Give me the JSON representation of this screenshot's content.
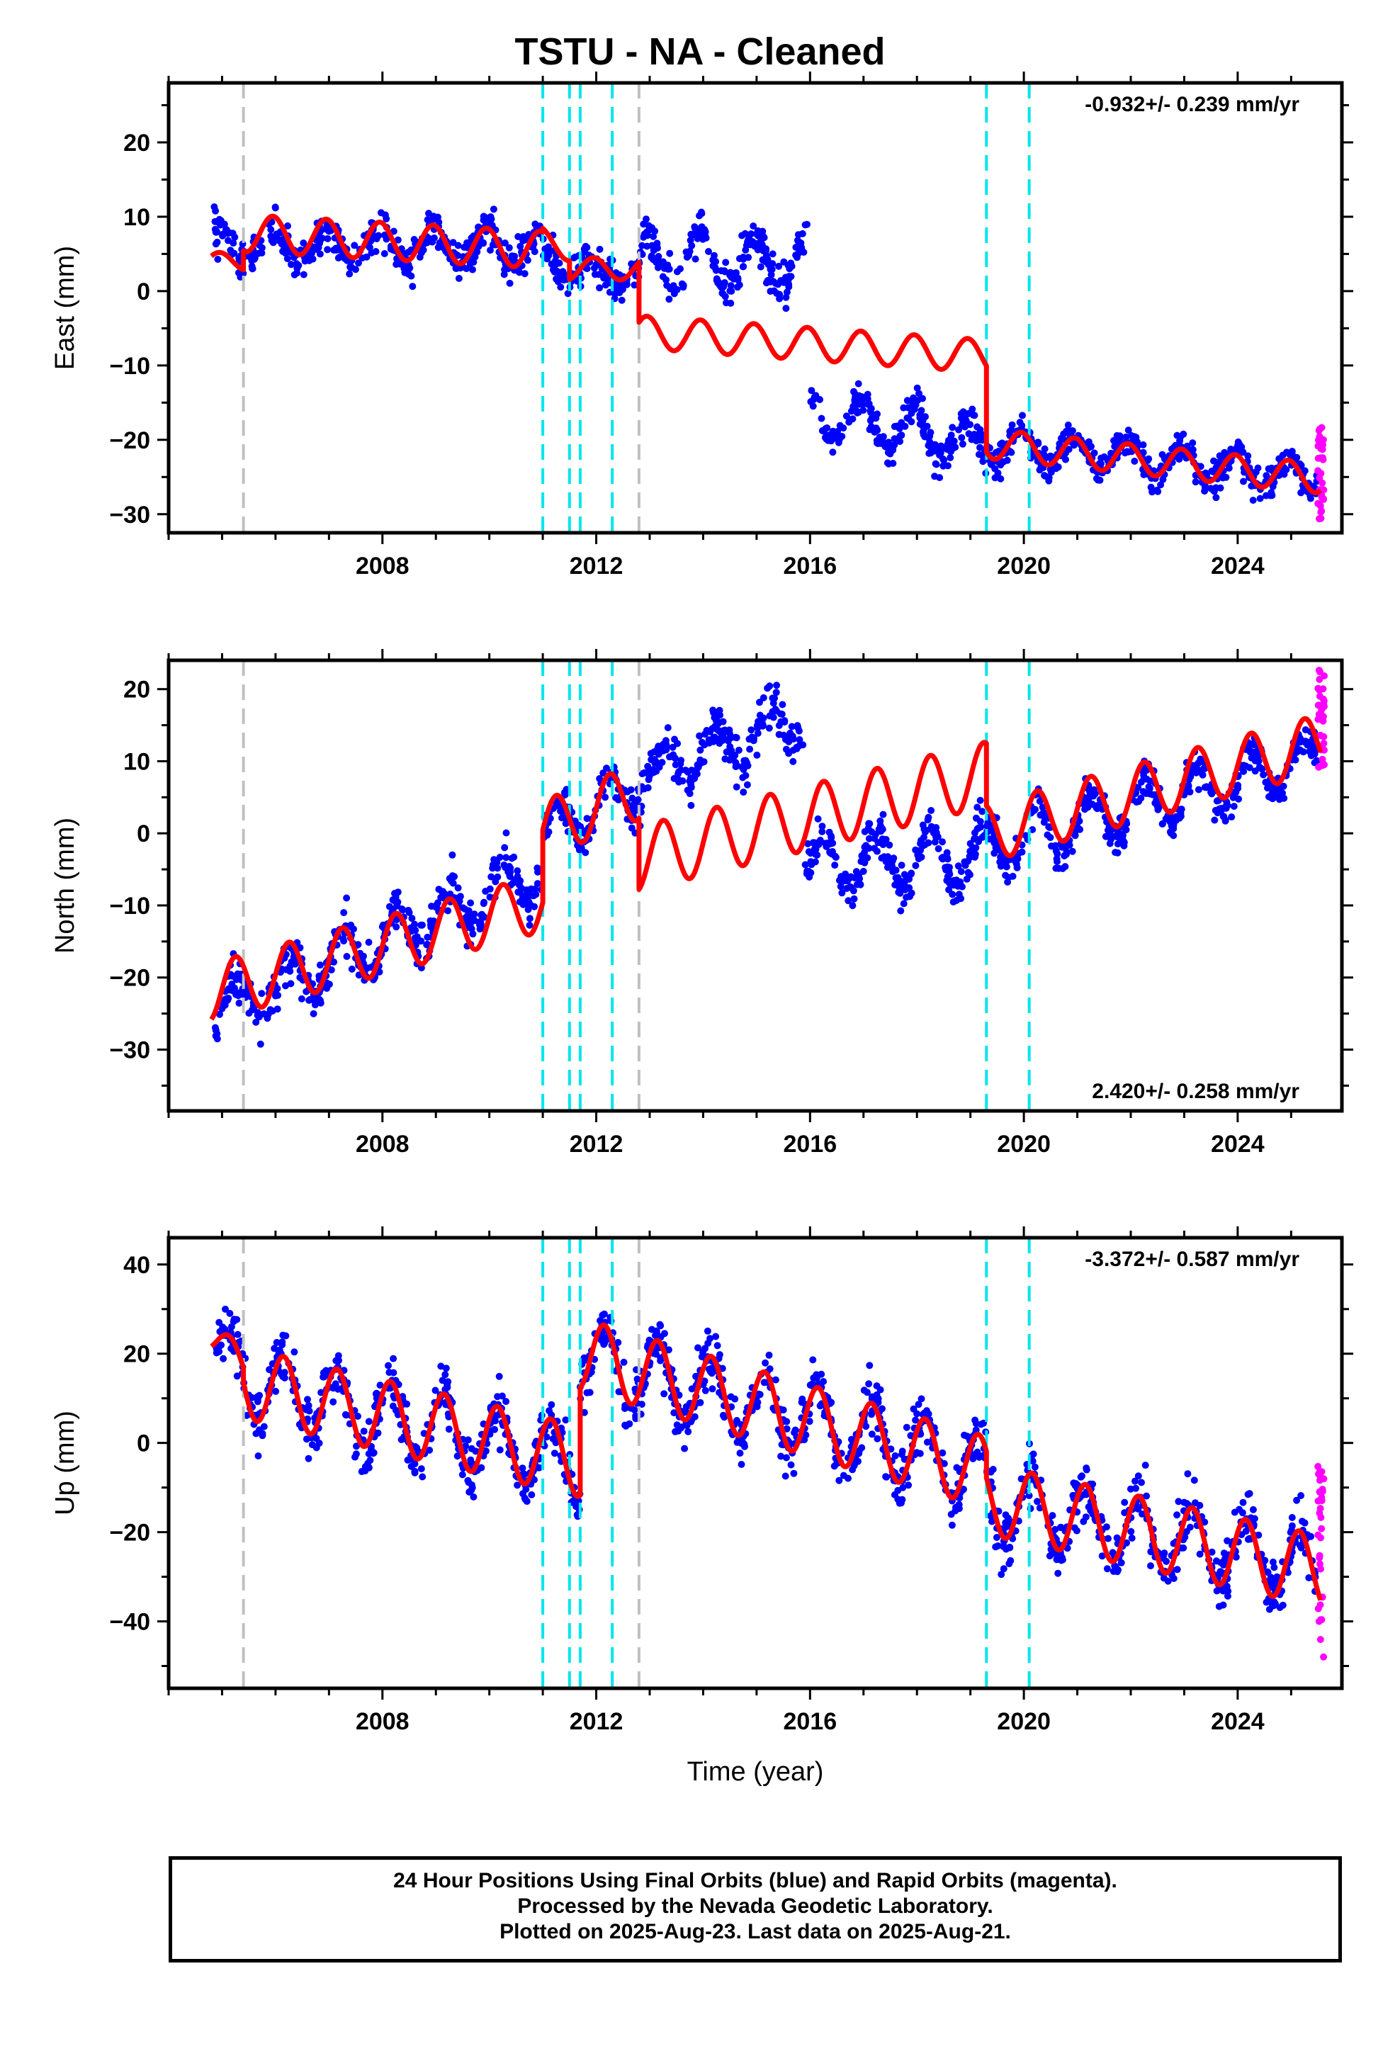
{
  "title": "TSTU  - NA - Cleaned",
  "colors": {
    "final_orbits": "#0000ff",
    "rapid_orbits": "#ff00ff",
    "model": "#ff0000",
    "antenna_change": "#c0c0c0",
    "earthquake": "#00e5ee"
  },
  "footer": {
    "line1": "24 Hour Positions Using Final Orbits (blue) and Rapid Orbits (magenta).",
    "line2": "Processed by the Nevada Geodetic Laboratory.",
    "line3": "Plotted on 2025-Aug-23. Last data on 2025-Aug-21."
  },
  "chart_data": [
    {
      "type": "scatter",
      "component": "East",
      "ylabel": "East (mm)",
      "xlabel": "",
      "rate_label": "-0.932+/- 0.239 mm/yr",
      "rate_label_position": "top-right",
      "xlim": [
        2004.0,
        2025.95
      ],
      "ylim": [
        -32.5,
        28
      ],
      "x_ticks": [
        2008,
        2012,
        2016,
        2020,
        2024
      ],
      "y_ticks": [
        -30,
        -20,
        -10,
        0,
        10,
        20
      ],
      "gray_dashed_lines": [
        2005.4,
        2012.8
      ],
      "cyan_dashed_lines": [
        2011.0,
        2011.5,
        2011.7,
        2012.3,
        2019.3,
        2020.1
      ],
      "model_segments": [
        {
          "x0": 2004.8,
          "x1": 2005.4,
          "base": 4.0,
          "slope": 0.0,
          "amp": 1.2,
          "phase": 0.3
        },
        {
          "x0": 2005.4,
          "x1": 2011.0,
          "base": 7.8,
          "slope": -0.4,
          "amp": 2.5,
          "phase": 0.3
        },
        {
          "x0": 2011.0,
          "x1": 2011.5,
          "base": 7.0,
          "slope": -3.0,
          "amp": 1.5,
          "phase": 0.3
        },
        {
          "x0": 2011.5,
          "x1": 2012.8,
          "base": 3.0,
          "slope": 0.0,
          "amp": 1.5,
          "phase": 0.3
        },
        {
          "x0": 2012.8,
          "x1": 2019.3,
          "base": -5.5,
          "slope": -0.5,
          "amp": 2.2,
          "phase": 0.3
        },
        {
          "x0": 2019.3,
          "x1": 2025.55,
          "base": -20.5,
          "slope": -0.75,
          "amp": 2.0,
          "phase": 0.3
        }
      ],
      "data_segments": [
        {
          "x0": 2004.85,
          "x1": 2011.0,
          "base": 6.0,
          "slope": 0.0,
          "amp": 2.5,
          "phase": 0.3,
          "noise": 2.0
        },
        {
          "x0": 2011.0,
          "x1": 2012.8,
          "base": 3.5,
          "slope": -0.8,
          "amp": 2.0,
          "phase": 0.3,
          "noise": 2.2
        },
        {
          "x0": 2012.8,
          "x1": 2015.95,
          "base": 4.0,
          "slope": 0.0,
          "amp": 3.5,
          "phase": 0.3,
          "noise": 2.2
        },
        {
          "x0": 2016.0,
          "x1": 2019.3,
          "base": -16.5,
          "slope": -1.2,
          "amp": 3.0,
          "phase": 0.3,
          "noise": 2.0
        },
        {
          "x0": 2019.3,
          "x1": 2025.5,
          "base": -20.5,
          "slope": -0.75,
          "amp": 2.0,
          "phase": 0.3,
          "noise": 1.8
        }
      ],
      "rapid_points": {
        "x0": 2025.5,
        "x1": 2025.62,
        "ymin": -31.5,
        "ymax": -18.0
      }
    },
    {
      "type": "scatter",
      "component": "North",
      "ylabel": "North (mm)",
      "xlabel": "",
      "rate_label": "2.420+/- 0.258 mm/yr",
      "rate_label_position": "bottom-right",
      "xlim": [
        2004.0,
        2025.95
      ],
      "ylim": [
        -38.5,
        24
      ],
      "x_ticks": [
        2008,
        2012,
        2016,
        2020,
        2024
      ],
      "y_ticks": [
        -30,
        -20,
        -10,
        0,
        10,
        20
      ],
      "gray_dashed_lines": [
        2005.4,
        2012.8
      ],
      "cyan_dashed_lines": [
        2011.0,
        2011.5,
        2011.7,
        2012.3,
        2019.3,
        2020.1
      ],
      "model_segments": [
        {
          "x0": 2004.8,
          "x1": 2011.0,
          "base": -22.0,
          "slope": 2.0,
          "amp": 4.0,
          "phase": 0.0
        },
        {
          "x0": 2011.0,
          "x1": 2012.8,
          "base": 0.5,
          "slope": 3.0,
          "amp": 4.0,
          "phase": 0.0
        },
        {
          "x0": 2012.8,
          "x1": 2019.3,
          "base": -3.5,
          "slope": 1.8,
          "amp": 4.5,
          "phase": 0.0
        },
        {
          "x0": 2019.3,
          "x1": 2025.55,
          "base": 0.0,
          "slope": 2.0,
          "amp": 4.0,
          "phase": 0.0
        }
      ],
      "data_segments": [
        {
          "x0": 2004.85,
          "x1": 2011.0,
          "base": -25.0,
          "slope": 3.2,
          "amp": 3.5,
          "phase": 0.0,
          "noise": 2.5
        },
        {
          "x0": 2011.0,
          "x1": 2012.8,
          "base": -0.5,
          "slope": 4.0,
          "amp": 3.5,
          "phase": 0.0,
          "noise": 2.2
        },
        {
          "x0": 2012.8,
          "x1": 2015.9,
          "base": 8.0,
          "slope": 2.5,
          "amp": 3.5,
          "phase": 0.0,
          "noise": 2.5
        },
        {
          "x0": 2015.9,
          "x1": 2019.3,
          "base": -4.0,
          "slope": 0.3,
          "amp": 4.0,
          "phase": 0.0,
          "noise": 2.5
        },
        {
          "x0": 2019.3,
          "x1": 2025.5,
          "base": -2.0,
          "slope": 2.0,
          "amp": 3.5,
          "phase": 0.0,
          "noise": 2.0
        }
      ],
      "rapid_points": {
        "x0": 2025.5,
        "x1": 2025.62,
        "ymin": 9.0,
        "ymax": 23.0
      }
    },
    {
      "type": "scatter",
      "component": "Up",
      "ylabel": "Up (mm)",
      "xlabel": "Time (year)",
      "rate_label": "-3.372+/- 0.587 mm/yr",
      "rate_label_position": "top-right",
      "xlim": [
        2004.0,
        2025.95
      ],
      "ylim": [
        -55,
        46
      ],
      "x_ticks": [
        2008,
        2012,
        2016,
        2020,
        2024
      ],
      "y_ticks": [
        -40,
        -20,
        0,
        20,
        40
      ],
      "gray_dashed_lines": [
        2005.4,
        2012.8
      ],
      "cyan_dashed_lines": [
        2011.0,
        2011.5,
        2011.7,
        2012.3,
        2019.3,
        2020.1
      ],
      "model_segments": [
        {
          "x0": 2004.8,
          "x1": 2005.4,
          "base": 24.0,
          "slope": -12.0,
          "amp": 4.0,
          "phase": 0.1
        },
        {
          "x0": 2005.4,
          "x1": 2011.7,
          "base": 13.5,
          "slope": -2.8,
          "amp": 8.0,
          "phase": 0.1
        },
        {
          "x0": 2011.7,
          "x1": 2019.3,
          "base": 20.0,
          "slope": -3.5,
          "amp": 8.0,
          "phase": 0.1
        },
        {
          "x0": 2019.3,
          "x1": 2025.55,
          "base": -12.5,
          "slope": -2.6,
          "amp": 8.0,
          "phase": 0.1
        }
      ],
      "data_segments": [
        {
          "x0": 2004.85,
          "x1": 2005.4,
          "base": 24.0,
          "slope": -12.0,
          "amp": 4.0,
          "phase": 0.1,
          "noise": 5.0
        },
        {
          "x0": 2005.4,
          "x1": 2011.7,
          "base": 13.5,
          "slope": -2.8,
          "amp": 8.0,
          "phase": 0.1,
          "noise": 5.0
        },
        {
          "x0": 2011.7,
          "x1": 2019.3,
          "base": 20.0,
          "slope": -3.5,
          "amp": 8.0,
          "phase": 0.1,
          "noise": 5.5
        },
        {
          "x0": 2019.3,
          "x1": 2025.5,
          "base": -12.5,
          "slope": -2.6,
          "amp": 8.0,
          "phase": 0.1,
          "noise": 5.0
        }
      ],
      "rapid_points": {
        "x0": 2025.5,
        "x1": 2025.62,
        "ymin": -48.0,
        "ymax": -5.0
      }
    }
  ]
}
